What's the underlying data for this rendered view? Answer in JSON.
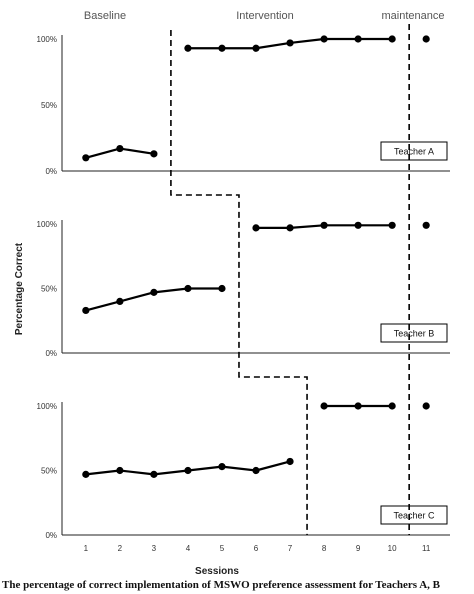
{
  "chart_data": {
    "type": "line",
    "phases": [
      "Baseline",
      "Intervention",
      "maintenance"
    ],
    "x_label": "Sessions",
    "y_label": "Percentage Correct",
    "x_ticks": [
      "1",
      "2",
      "3",
      "4",
      "5",
      "6",
      "7",
      "8",
      "9",
      "10",
      "11"
    ],
    "y_ticks": [
      "0%",
      "50%",
      "100%"
    ],
    "ylim": [
      0,
      100
    ],
    "xlim": [
      0.3,
      11.7
    ],
    "panels": [
      {
        "label": "Teacher A",
        "segments": [
          {
            "phase": "Baseline",
            "x": [
              1,
              2,
              3
            ],
            "y": [
              10,
              17,
              13
            ]
          },
          {
            "phase": "Intervention",
            "x": [
              4,
              5,
              6,
              7,
              8,
              9,
              10
            ],
            "y": [
              93,
              93,
              93,
              97,
              100,
              100,
              100
            ]
          },
          {
            "phase": "maintenance",
            "x": [
              11
            ],
            "y": [
              100
            ]
          }
        ]
      },
      {
        "label": "Teacher B",
        "segments": [
          {
            "phase": "Baseline",
            "x": [
              1,
              2,
              3,
              4,
              5
            ],
            "y": [
              33,
              40,
              47,
              50,
              50
            ]
          },
          {
            "phase": "Intervention",
            "x": [
              6,
              7,
              8,
              9,
              10
            ],
            "y": [
              97,
              97,
              99,
              99,
              99
            ]
          },
          {
            "phase": "maintenance",
            "x": [
              11
            ],
            "y": [
              99
            ]
          }
        ]
      },
      {
        "label": "Teacher C",
        "segments": [
          {
            "phase": "Baseline",
            "x": [
              1,
              2,
              3,
              4,
              5,
              6,
              7
            ],
            "y": [
              47,
              50,
              47,
              50,
              53,
              50,
              57
            ]
          },
          {
            "phase": "Intervention",
            "x": [
              8,
              9,
              10
            ],
            "y": [
              100,
              100,
              100
            ]
          },
          {
            "phase": "maintenance",
            "x": [
              11
            ],
            "y": [
              100
            ]
          }
        ]
      }
    ],
    "phase_changes": [
      3.5,
      5.5,
      7.5
    ],
    "maintenance_line": 10.5
  },
  "caption": "The percentage of correct implementation of MSWO preference assessment for Teachers A, B"
}
